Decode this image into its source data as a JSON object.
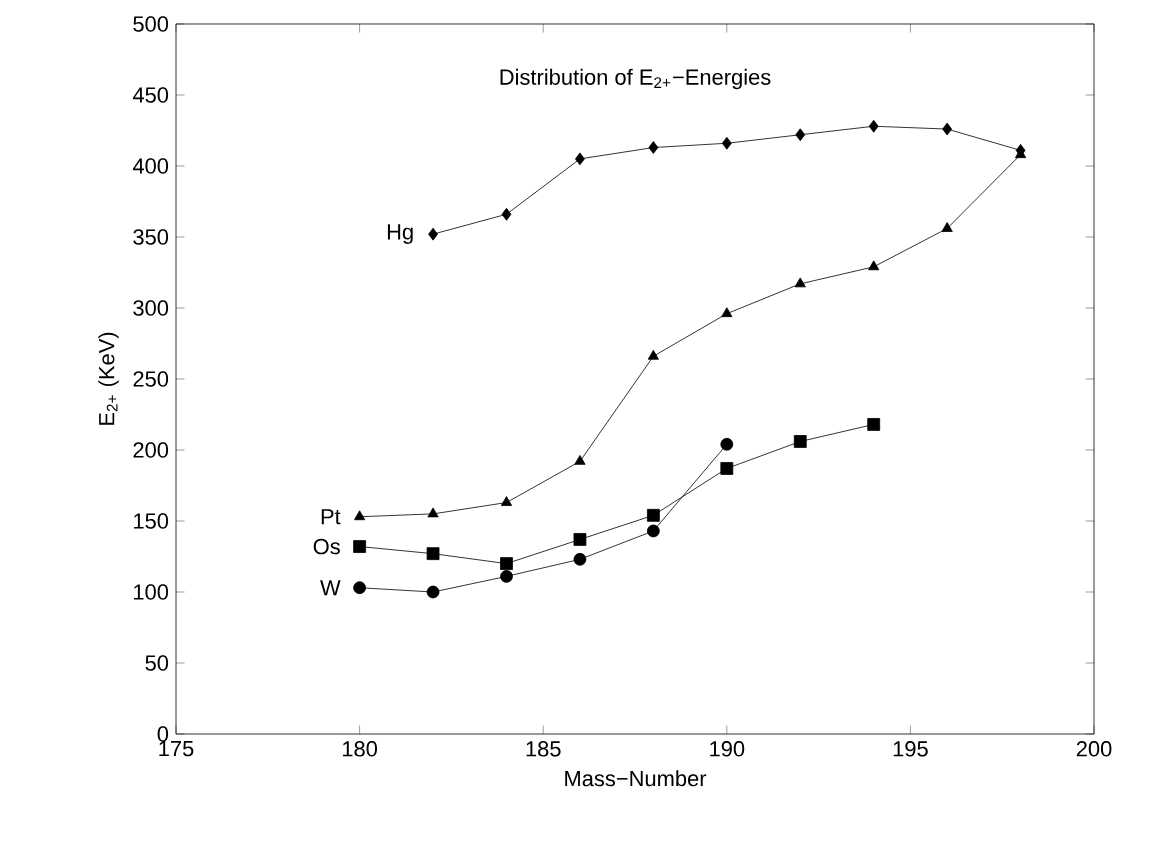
{
  "chart_data": {
    "type": "line",
    "title": "Distribution of E$_{2+}$−Energies",
    "xlabel": "Mass−Number",
    "ylabel": "E$_{2+}$ (KeV)",
    "xlim": [
      175,
      200
    ],
    "xticks": [
      175,
      180,
      185,
      190,
      195,
      200
    ],
    "ylim": [
      0,
      500
    ],
    "yticks": [
      0,
      50,
      100,
      150,
      200,
      250,
      300,
      350,
      400,
      450,
      500
    ],
    "grid": false,
    "legend": false,
    "line_style": "solid",
    "series": [
      {
        "name": "Hg",
        "color": "#000000",
        "marker": "diamond",
        "x": [
          182,
          184,
          186,
          188,
          190,
          192,
          194,
          196,
          198
        ],
        "values": [
          352,
          366,
          405,
          413,
          416,
          422,
          428,
          426,
          411
        ]
      },
      {
        "name": "Pt",
        "color": "#000000",
        "marker": "triangle",
        "x": [
          180,
          182,
          184,
          186,
          188,
          190,
          192,
          194,
          196,
          198
        ],
        "values": [
          153,
          155,
          163,
          192,
          266,
          296,
          317,
          329,
          356,
          408
        ]
      },
      {
        "name": "Os",
        "color": "#000000",
        "marker": "square",
        "x": [
          180,
          182,
          184,
          186,
          188,
          190,
          192,
          194
        ],
        "values": [
          132,
          127,
          120,
          137,
          154,
          187,
          206,
          218
        ]
      },
      {
        "name": "W",
        "color": "#000000",
        "marker": "circle",
        "x": [
          180,
          182,
          184,
          186,
          188,
          190
        ],
        "values": [
          103,
          100,
          111,
          123,
          143,
          204
        ]
      }
    ]
  }
}
